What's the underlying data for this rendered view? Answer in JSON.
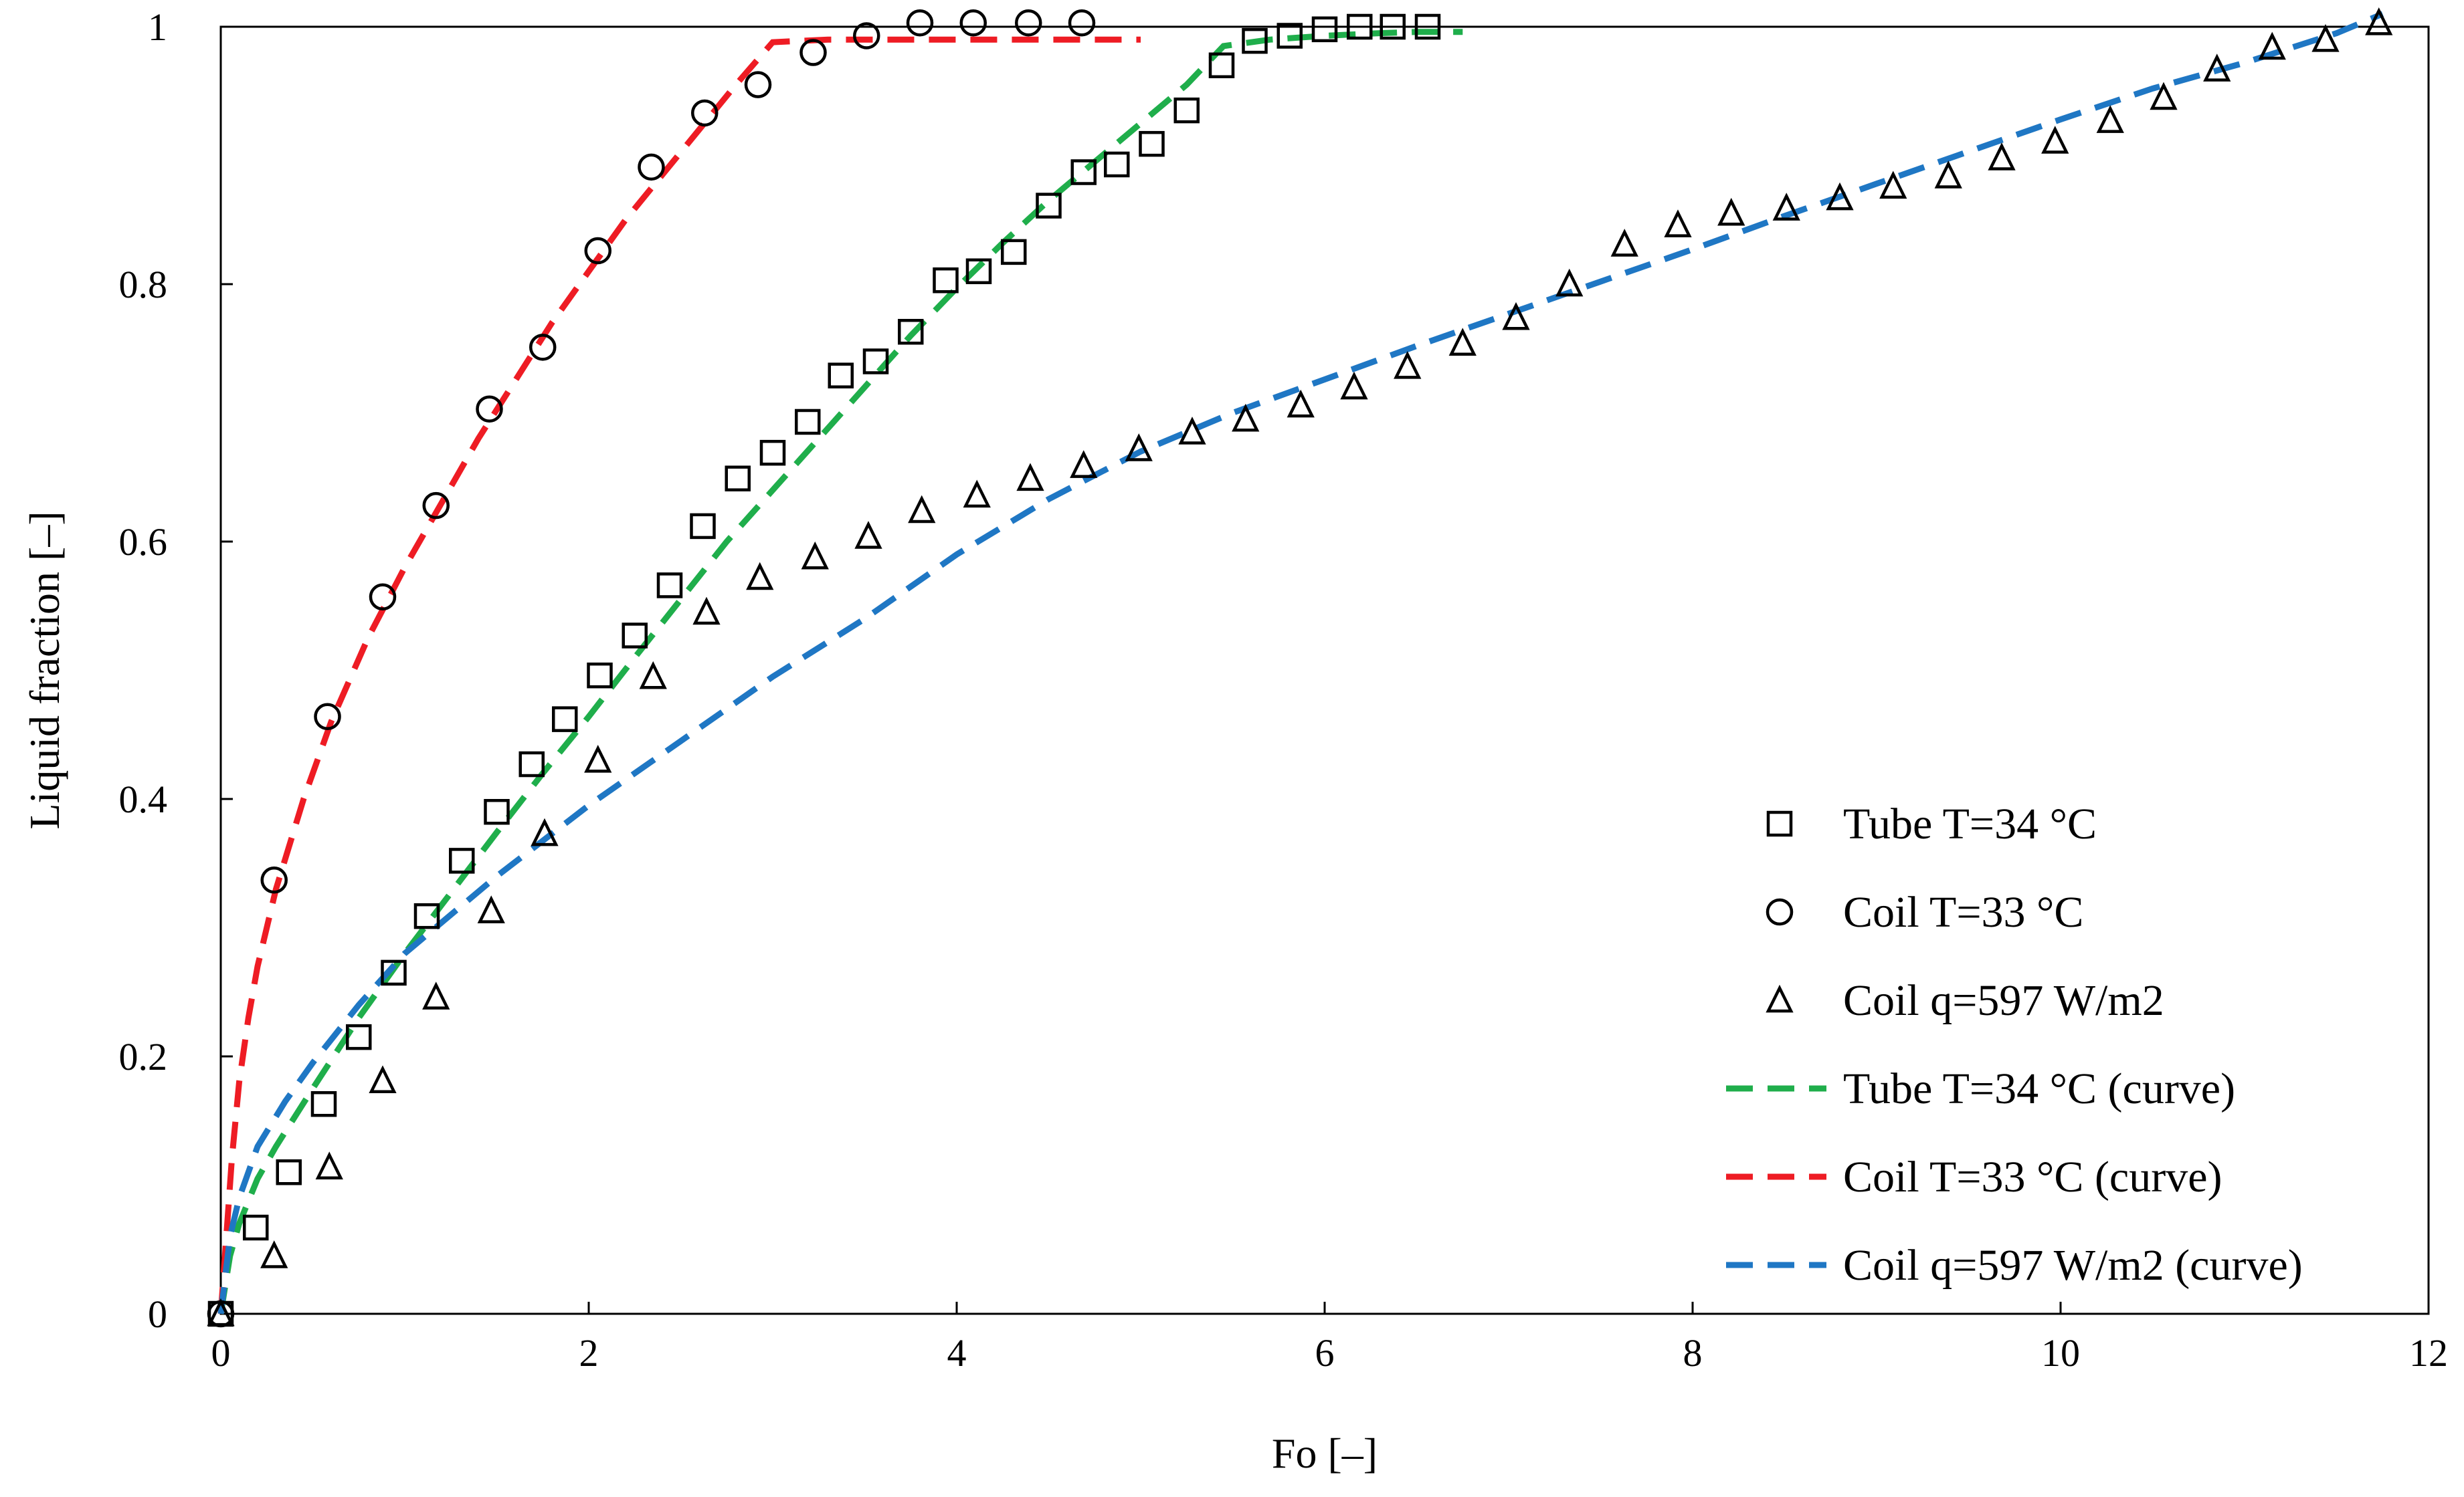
{
  "chart_data": {
    "type": "scatter",
    "title": "",
    "xlabel": "Fo [–]",
    "ylabel": "Liquid fraction [–]",
    "xlim": [
      0,
      12
    ],
    "ylim": [
      0,
      1
    ],
    "x_ticks": [
      0,
      2,
      4,
      6,
      8,
      10,
      12
    ],
    "x_tick_labels": [
      "0",
      "2",
      "4",
      "6",
      "8",
      "10",
      "12"
    ],
    "y_ticks": [
      0,
      0.2,
      0.4,
      0.6,
      0.8,
      1
    ],
    "y_tick_labels": [
      "0",
      "0.2",
      "0.4",
      "0.6",
      "0.8",
      "1"
    ],
    "grid": false,
    "legend_position": "bottom-right",
    "series": [
      {
        "name": "Tube T=34 °C",
        "kind": "markers",
        "marker": "square",
        "color": "#000000",
        "x": [
          0.0,
          0.19,
          0.37,
          0.56,
          0.75,
          0.94,
          1.12,
          1.31,
          1.5,
          1.69,
          1.87,
          2.06,
          2.25,
          2.44,
          2.62,
          2.81,
          3.0,
          3.19,
          3.37,
          3.56,
          3.75,
          3.94,
          4.12,
          4.31,
          4.5,
          4.69,
          4.87,
          5.06,
          5.25,
          5.44,
          5.62,
          5.81,
          6.0,
          6.19,
          6.37,
          6.56
        ],
        "y": [
          0.0,
          0.067,
          0.11,
          0.163,
          0.215,
          0.265,
          0.309,
          0.352,
          0.39,
          0.427,
          0.462,
          0.496,
          0.527,
          0.566,
          0.612,
          0.649,
          0.669,
          0.693,
          0.729,
          0.74,
          0.763,
          0.803,
          0.81,
          0.825,
          0.861,
          0.887,
          0.893,
          0.909,
          0.935,
          0.97,
          0.989,
          0.993,
          0.998,
          1.0,
          1.0,
          1.0
        ]
      },
      {
        "name": "Coil T=33 °C",
        "kind": "markers",
        "marker": "circle",
        "color": "#000000",
        "x": [
          0.0,
          0.29,
          0.58,
          0.88,
          1.17,
          1.46,
          1.75,
          2.05,
          2.34,
          2.63,
          2.92,
          3.22,
          3.51,
          3.8,
          4.09,
          4.39,
          4.68
        ],
        "y": [
          0.0,
          0.337,
          0.464,
          0.557,
          0.628,
          0.703,
          0.751,
          0.826,
          0.891,
          0.933,
          0.955,
          0.98,
          0.993,
          1.003,
          1.003,
          1.003,
          1.003
        ]
      },
      {
        "name": "Coil q=597 W/m2",
        "kind": "markers",
        "marker": "triangle",
        "color": "#000000",
        "x": [
          0.0,
          0.29,
          0.59,
          0.88,
          1.17,
          1.47,
          1.76,
          2.05,
          2.35,
          2.64,
          2.93,
          3.23,
          3.52,
          3.81,
          4.11,
          4.4,
          4.69,
          4.99,
          5.28,
          5.57,
          5.87,
          6.16,
          6.45,
          6.75,
          7.04,
          7.33,
          7.63,
          7.92,
          8.21,
          8.51,
          8.8,
          9.09,
          9.39,
          9.68,
          9.97,
          10.27,
          10.56,
          10.85,
          11.15,
          11.44,
          11.73
        ],
        "y": [
          0.0,
          0.045,
          0.114,
          0.181,
          0.246,
          0.313,
          0.373,
          0.43,
          0.495,
          0.545,
          0.572,
          0.588,
          0.604,
          0.624,
          0.636,
          0.649,
          0.659,
          0.672,
          0.685,
          0.695,
          0.706,
          0.72,
          0.736,
          0.754,
          0.774,
          0.8,
          0.831,
          0.846,
          0.855,
          0.859,
          0.867,
          0.876,
          0.884,
          0.898,
          0.911,
          0.927,
          0.945,
          0.967,
          0.984,
          0.99,
          1.003
        ]
      },
      {
        "name": "Tube T=34 °C (curve)",
        "kind": "line",
        "style": "dashed",
        "color": "#1fae4b",
        "x": [
          0.0,
          0.05,
          0.1,
          0.2,
          0.3,
          0.5,
          0.75,
          1.0,
          1.25,
          1.5,
          1.75,
          2.0,
          2.25,
          2.5,
          2.75,
          3.0,
          3.25,
          3.5,
          3.75,
          4.0,
          4.25,
          4.5,
          4.75,
          5.0,
          5.25,
          5.45,
          5.7,
          6.0,
          6.3,
          6.5,
          6.75
        ],
        "y": [
          0.0,
          0.045,
          0.07,
          0.105,
          0.13,
          0.175,
          0.23,
          0.28,
          0.327,
          0.374,
          0.42,
          0.464,
          0.51,
          0.555,
          0.6,
          0.64,
          0.68,
          0.72,
          0.76,
          0.797,
          0.832,
          0.865,
          0.895,
          0.925,
          0.955,
          0.985,
          0.99,
          0.993,
          0.995,
          0.996,
          0.996
        ]
      },
      {
        "name": "Coil T=33 °C (curve)",
        "kind": "line",
        "style": "dashed",
        "color": "#ee1c24",
        "x": [
          0.0,
          0.03,
          0.06,
          0.1,
          0.15,
          0.2,
          0.3,
          0.45,
          0.6,
          0.8,
          1.0,
          1.2,
          1.4,
          1.6,
          1.8,
          2.0,
          2.2,
          2.4,
          2.6,
          2.8,
          3.0,
          3.3,
          3.6,
          4.0,
          4.4,
          4.8,
          5.0
        ],
        "y": [
          0.0,
          0.06,
          0.12,
          0.18,
          0.23,
          0.27,
          0.33,
          0.4,
          0.46,
          0.525,
          0.58,
          0.63,
          0.68,
          0.725,
          0.77,
          0.81,
          0.85,
          0.885,
          0.92,
          0.955,
          0.988,
          0.99,
          0.99,
          0.99,
          0.99,
          0.99,
          0.99
        ]
      },
      {
        "name": "Coil q=597 W/m2 (curve)",
        "kind": "line",
        "style": "dashed",
        "color": "#1f77c4",
        "x": [
          0.0,
          0.05,
          0.1,
          0.2,
          0.35,
          0.5,
          0.75,
          1.0,
          1.5,
          2.0,
          2.5,
          3.0,
          3.5,
          4.0,
          4.5,
          5.0,
          5.5,
          6.0,
          6.5,
          7.0,
          7.5,
          8.0,
          8.5,
          9.0,
          9.5,
          10.0,
          10.5,
          11.0,
          11.5,
          11.75
        ],
        "y": [
          0.0,
          0.06,
          0.09,
          0.13,
          0.165,
          0.195,
          0.24,
          0.28,
          0.34,
          0.395,
          0.445,
          0.495,
          0.54,
          0.59,
          0.633,
          0.67,
          0.7,
          0.726,
          0.752,
          0.777,
          0.802,
          0.827,
          0.853,
          0.878,
          0.903,
          0.928,
          0.952,
          0.972,
          0.995,
          1.01
        ]
      }
    ]
  }
}
